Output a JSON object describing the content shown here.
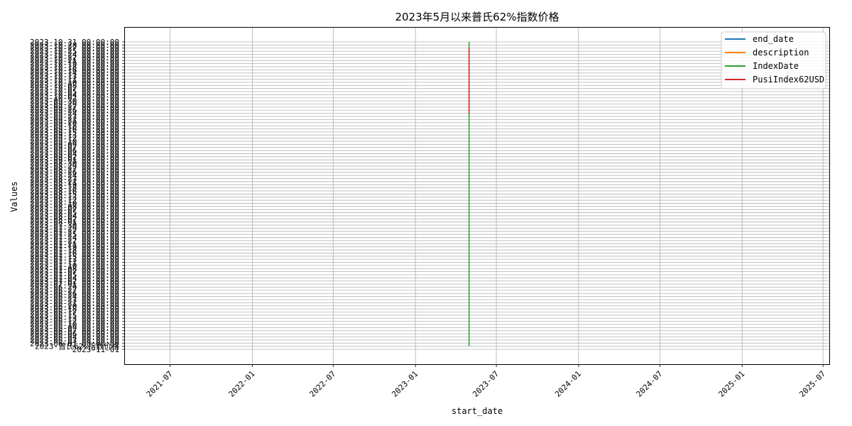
{
  "chart_data": {
    "type": "line",
    "title": "2023年5月以来普氏62%指数价格",
    "xlabel": "start_date",
    "ylabel": "Values",
    "x_axis": {
      "type": "date",
      "range": [
        "2021-03-22",
        "2025-07-15"
      ],
      "tick_labels": [
        "2021-07",
        "2022-01",
        "2022-07",
        "2023-01",
        "2023-07",
        "2024-01",
        "2024-07",
        "2025-01",
        "2025-07"
      ]
    },
    "y_axis": {
      "type": "categorical",
      "category_count": 100,
      "first_tick_label": "2023-11-01",
      "second_tick_label": "2023-普氏62%指数价格",
      "top_tick_label": "2023-10-31 00:00:00",
      "tick_label_pattern": "2023-MM-DD 00:00:00"
    },
    "series": [
      {
        "name": "end_date",
        "color": "#1f77b4",
        "x": [],
        "y": []
      },
      {
        "name": "description",
        "color": "#ff7f0e",
        "x": [],
        "y": []
      },
      {
        "name": "IndexDate",
        "color": "#2ca02c",
        "x": [
          "2023-05-01",
          "2023-05-01"
        ],
        "y_category_index": [
          1,
          99
        ]
      },
      {
        "name": "PusiIndex62USD",
        "color": "#d62728",
        "x": [
          "2023-05-01",
          "2023-05-01"
        ],
        "y_category_index": [
          76,
          97
        ]
      }
    ],
    "legend_position": "top-right",
    "grid": true
  }
}
